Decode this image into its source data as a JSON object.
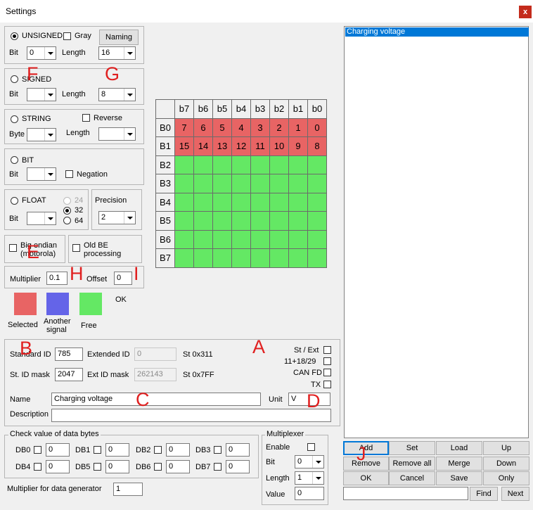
{
  "window": {
    "title": "Settings",
    "close_label": "x"
  },
  "unsigned": {
    "radio": "UNSIGNED",
    "gray": "Gray",
    "naming": "Naming",
    "bit_label": "Bit",
    "bit_value": "0",
    "length_label": "Length",
    "length_value": "16"
  },
  "signed": {
    "radio": "SIGNED",
    "bit_label": "Bit",
    "bit_value": "",
    "length_label": "Length",
    "length_value": "8"
  },
  "string": {
    "radio": "STRING",
    "reverse": "Reverse",
    "byte_label": "Byte",
    "byte_value": "",
    "length_label": "Length",
    "length_value": ""
  },
  "bit": {
    "radio": "BIT",
    "bit_label": "Bit",
    "bit_value": "",
    "negation": "Negation"
  },
  "float": {
    "radio": "FLOAT",
    "opt24": "24",
    "opt32": "32",
    "opt64": "64",
    "bit_label": "Bit",
    "bit_value": "",
    "precision_label": "Precision",
    "precision_value": "2"
  },
  "endian": {
    "big_line1": "Big endian",
    "big_line2": "(motorola)",
    "old_line1": "Old BE",
    "old_line2": "processing"
  },
  "scale": {
    "multiplier_label": "Multiplier",
    "multiplier_value": "0.1",
    "offset_label": "Offset",
    "offset_value": "0"
  },
  "legend": {
    "selected": "Selected",
    "another_line1": "Another",
    "another_line2": "signal",
    "free": "Free",
    "ok": "OK",
    "colors": {
      "selected": "#e86464",
      "another": "#6464e8",
      "free": "#64e864"
    }
  },
  "bitgrid": {
    "cols": [
      "b7",
      "b6",
      "b5",
      "b4",
      "b3",
      "b2",
      "b1",
      "b0"
    ],
    "rows": [
      "B0",
      "B1",
      "B2",
      "B3",
      "B4",
      "B5",
      "B6",
      "B7"
    ],
    "cells": [
      [
        "7",
        "6",
        "5",
        "4",
        "3",
        "2",
        "1",
        "0"
      ],
      [
        "15",
        "14",
        "13",
        "12",
        "11",
        "10",
        "9",
        "8"
      ],
      [
        "",
        "",
        "",
        "",
        "",
        "",
        "",
        ""
      ],
      [
        "",
        "",
        "",
        "",
        "",
        "",
        "",
        ""
      ],
      [
        "",
        "",
        "",
        "",
        "",
        "",
        "",
        ""
      ],
      [
        "",
        "",
        "",
        "",
        "",
        "",
        "",
        ""
      ],
      [
        "",
        "",
        "",
        "",
        "",
        "",
        "",
        ""
      ],
      [
        "",
        "",
        "",
        "",
        "",
        "",
        "",
        ""
      ]
    ],
    "selected_rows": 2
  },
  "ids": {
    "std_label": "Standard ID",
    "std_value": "785",
    "ext_label": "Extended ID",
    "ext_value": "0",
    "st_hex": "St 0x311",
    "std_mask_label": "St. ID mask",
    "std_mask_value": "2047",
    "ext_mask_label": "Ext ID mask",
    "ext_mask_value": "262143",
    "st_mask_hex": "St 0x7FF",
    "st_ext": "St / Ext",
    "opt_1118": "11+18/29",
    "can_fd": "CAN FD",
    "tx": "TX"
  },
  "signal": {
    "name_label": "Name",
    "name_value": "Charging voltage",
    "unit_label": "Unit",
    "unit_value": "V",
    "desc_label": "Description",
    "desc_value": ""
  },
  "check": {
    "title": "Check value of data bytes",
    "items": [
      {
        "label": "DB0",
        "value": "0"
      },
      {
        "label": "DB1",
        "value": "0"
      },
      {
        "label": "DB2",
        "value": "0"
      },
      {
        "label": "DB3",
        "value": "0"
      },
      {
        "label": "DB4",
        "value": "0"
      },
      {
        "label": "DB5",
        "value": "0"
      },
      {
        "label": "DB6",
        "value": "0"
      },
      {
        "label": "DB7",
        "value": "0"
      }
    ]
  },
  "generator": {
    "label": "Multiplier for data generator",
    "value": "1"
  },
  "mux": {
    "title": "Multiplexer",
    "enable": "Enable",
    "bit_label": "Bit",
    "bit_value": "0",
    "length_label": "Length",
    "length_value": "1",
    "value_label": "Value",
    "value_value": "0"
  },
  "list": {
    "items": [
      "Charging voltage"
    ]
  },
  "buttons": {
    "add": "Add",
    "set": "Set",
    "load": "Load",
    "up": "Up",
    "remove": "Remove",
    "remove_all": "Remove all",
    "merge": "Merge",
    "down": "Down",
    "ok": "OK",
    "cancel": "Cancel",
    "save": "Save",
    "only": "Only",
    "find": "Find",
    "next": "Next",
    "find_value": ""
  },
  "markers": {
    "A": "A",
    "B": "B",
    "C": "C",
    "D": "D",
    "E": "E",
    "F": "F",
    "G": "G",
    "H": "H",
    "I": "I",
    "J": "J"
  }
}
